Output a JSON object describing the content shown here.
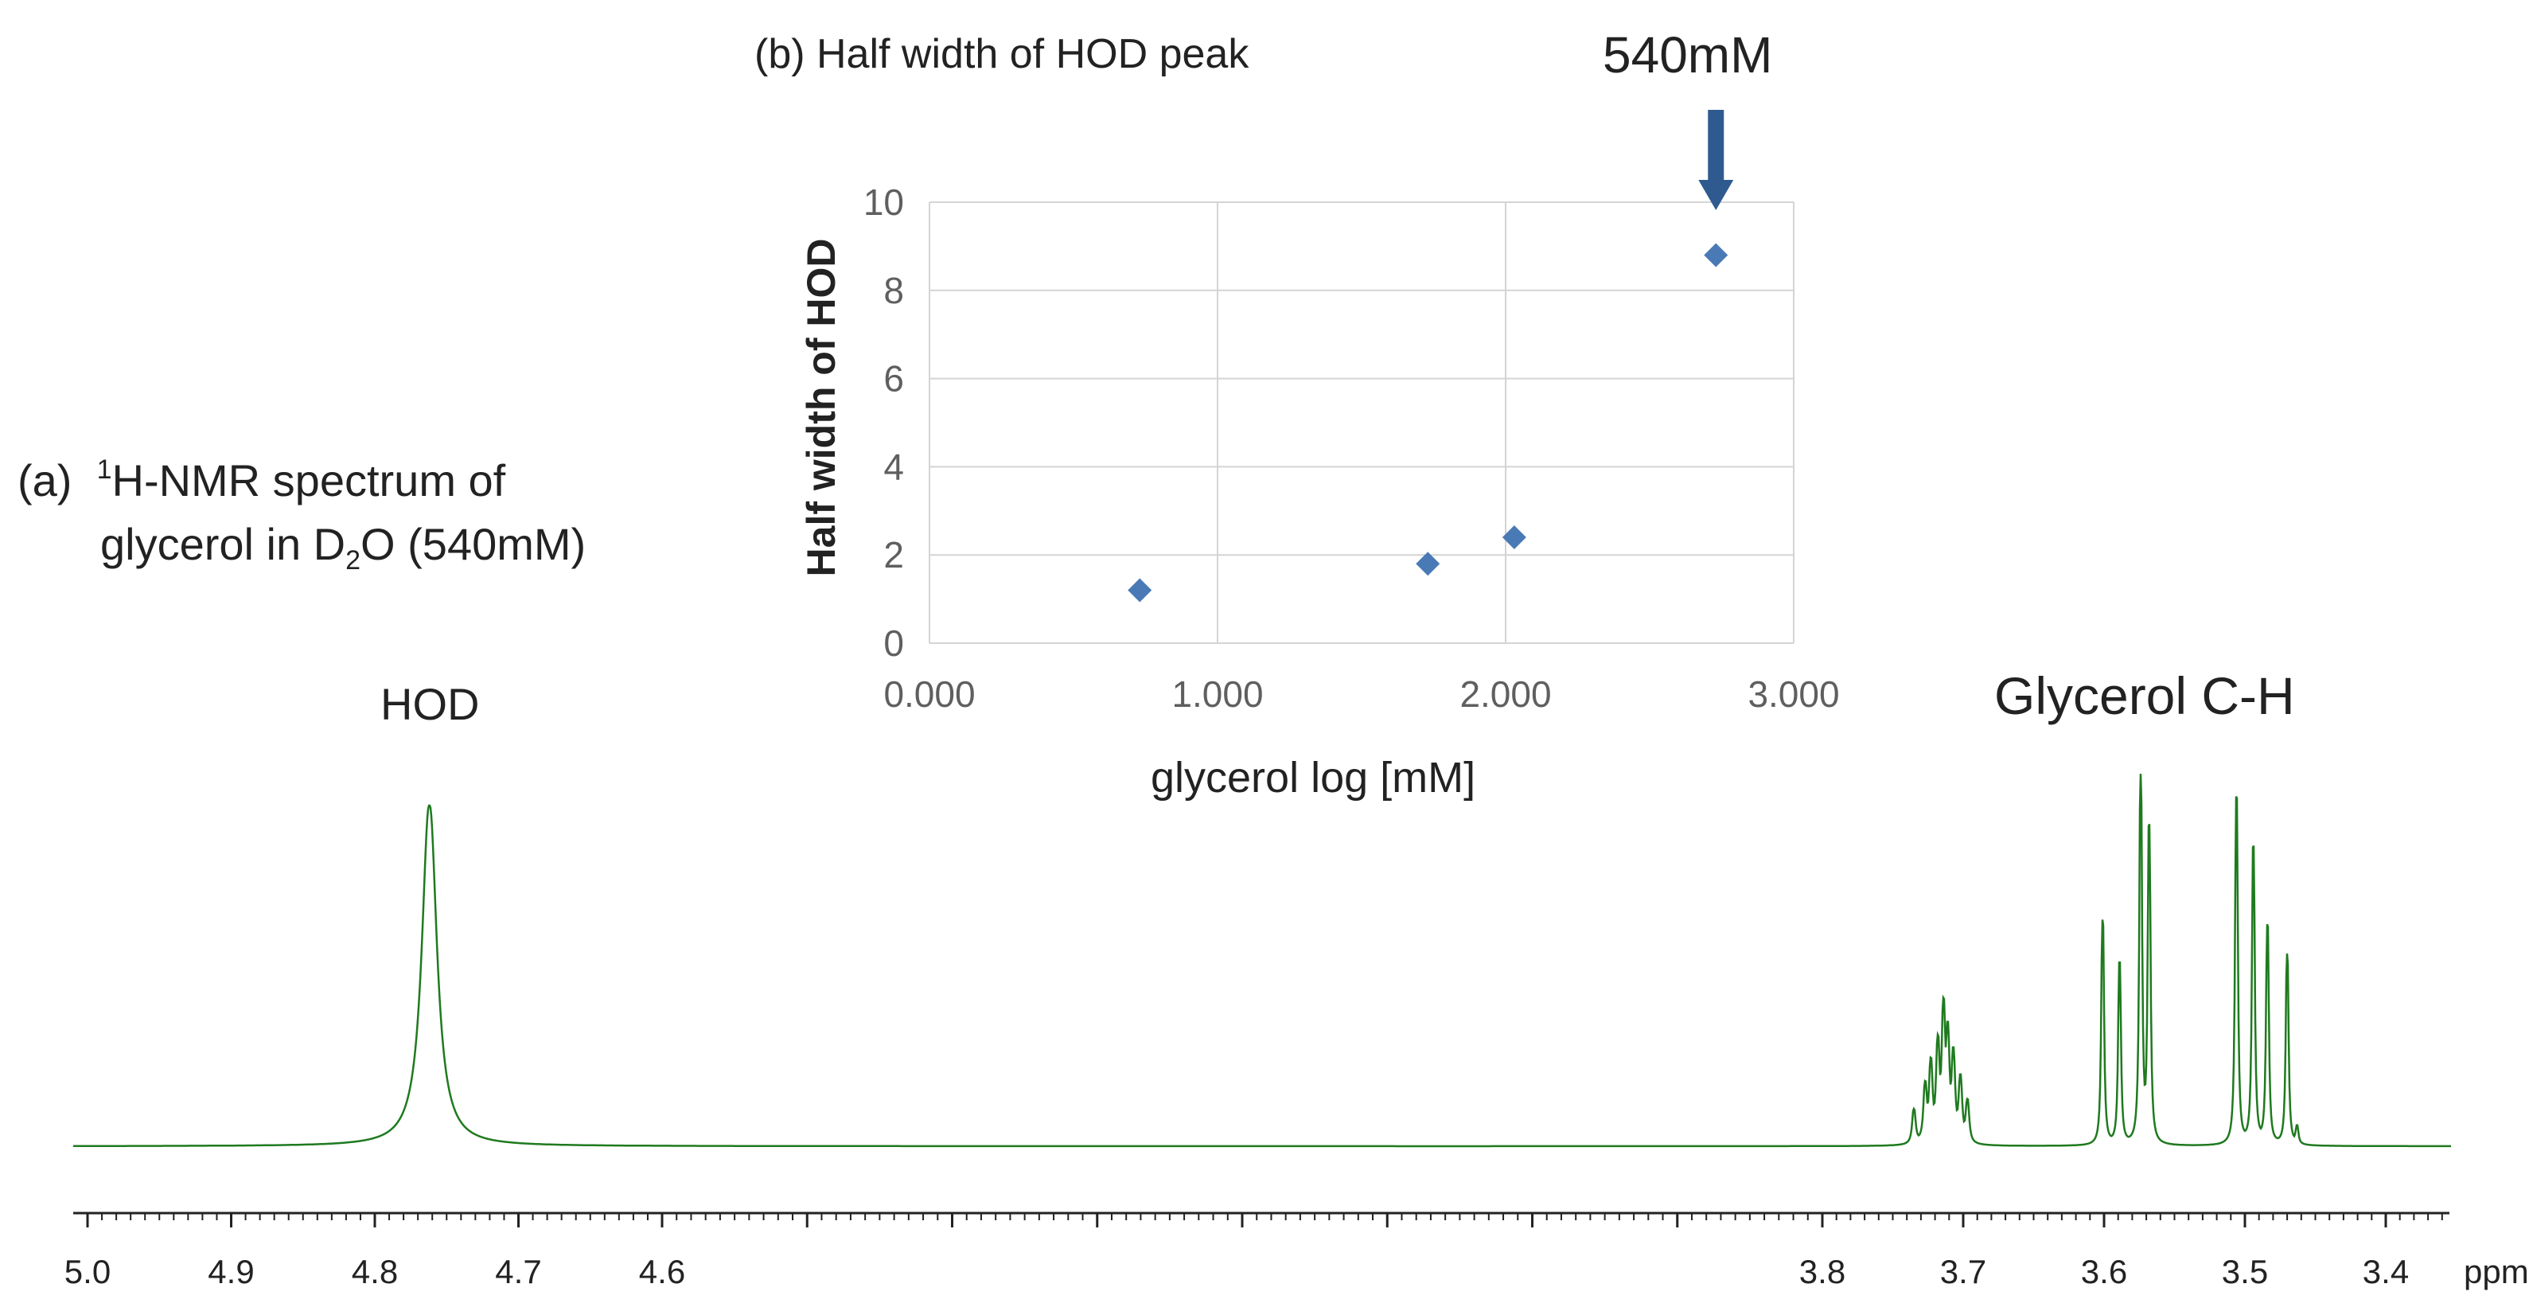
{
  "panel_a": {
    "label_prefix": "(a)",
    "nucleus_mass": "1",
    "label_line1_rest": "H-NMR spectrum of",
    "label_line2_start": "glycerol in D",
    "label_subscript": "2",
    "label_line2_end": "O (540mM)",
    "hod_label": "HOD",
    "glycerol_label": "Glycerol C-H"
  },
  "chart_data": [
    {
      "type": "scatter",
      "title": "(b) Half width of HOD peak",
      "xlabel": "glycerol  log [mM]",
      "ylabel": "Half width of HOD",
      "xlim": [
        0,
        3
      ],
      "ylim": [
        0,
        10
      ],
      "x_ticks": [
        "0.000",
        "1.000",
        "2.000",
        "3.000"
      ],
      "y_ticks": [
        "0",
        "2",
        "4",
        "6",
        "8",
        "10"
      ],
      "grid": true,
      "marker_color": "#4a7ab5",
      "points": [
        {
          "x": 0.73,
          "y": 1.2
        },
        {
          "x": 1.73,
          "y": 1.8
        },
        {
          "x": 2.03,
          "y": 2.4
        },
        {
          "x": 2.73,
          "y": 8.8
        }
      ],
      "annotation": {
        "text": "540mM",
        "x": 2.73,
        "arrow_color": "#2f5a8f"
      }
    },
    {
      "type": "line",
      "title": "1H-NMR spectrum of glycerol in D2O (540mM)",
      "xlabel": "ppm",
      "x_ticks": [
        "5.0",
        "4.9",
        "4.8",
        "4.7",
        "4.6",
        "3.8",
        "3.7",
        "3.6",
        "3.5",
        "3.4"
      ],
      "line_color": "#1f7a1f",
      "peaks": [
        {
          "ppm": 4.762,
          "height": 1.0,
          "width": 0.006,
          "label": "HOD"
        },
        {
          "ppm": 3.735,
          "height": 0.1,
          "width": 0.0012
        },
        {
          "ppm": 3.727,
          "height": 0.16,
          "width": 0.0012
        },
        {
          "ppm": 3.723,
          "height": 0.22,
          "width": 0.0012
        },
        {
          "ppm": 3.718,
          "height": 0.27,
          "width": 0.0012
        },
        {
          "ppm": 3.714,
          "height": 0.36,
          "width": 0.0012
        },
        {
          "ppm": 3.711,
          "height": 0.28,
          "width": 0.0012
        },
        {
          "ppm": 3.707,
          "height": 0.24,
          "width": 0.0012
        },
        {
          "ppm": 3.702,
          "height": 0.18,
          "width": 0.0012
        },
        {
          "ppm": 3.697,
          "height": 0.12,
          "width": 0.0012
        },
        {
          "ppm": 3.601,
          "height": 0.66,
          "width": 0.0009
        },
        {
          "ppm": 3.589,
          "height": 0.53,
          "width": 0.0009
        },
        {
          "ppm": 3.574,
          "height": 1.07,
          "width": 0.0009
        },
        {
          "ppm": 3.568,
          "height": 0.92,
          "width": 0.0009
        },
        {
          "ppm": 3.506,
          "height": 1.02,
          "width": 0.0009
        },
        {
          "ppm": 3.494,
          "height": 0.87,
          "width": 0.0009
        },
        {
          "ppm": 3.484,
          "height": 0.64,
          "width": 0.0009
        },
        {
          "ppm": 3.47,
          "height": 0.56,
          "width": 0.0009
        },
        {
          "ppm": 3.463,
          "height": 0.05,
          "width": 0.0009
        }
      ]
    }
  ]
}
